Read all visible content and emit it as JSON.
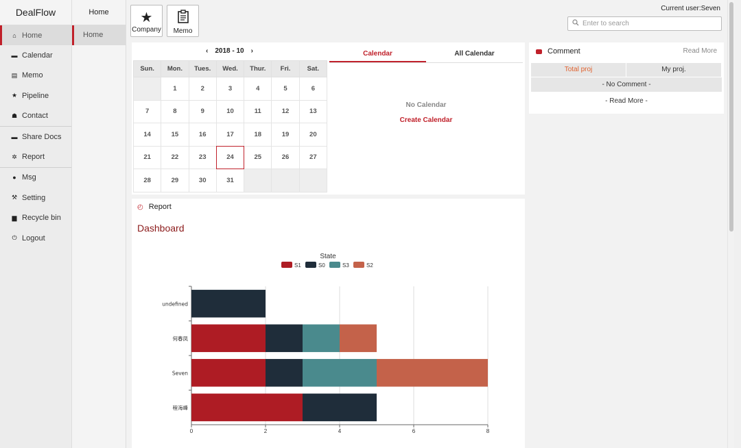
{
  "sidebar": {
    "brand": "DealFlow",
    "items": [
      {
        "label": "Home",
        "icon": "home-icon",
        "glyph": "⌂",
        "active": true
      },
      {
        "label": "Calendar",
        "icon": "calendar-icon",
        "glyph": "▬"
      },
      {
        "label": "Memo",
        "icon": "memo-icon",
        "glyph": "▤"
      },
      {
        "label": "Pipeline",
        "icon": "star-icon",
        "glyph": "★"
      },
      {
        "label": "Contact",
        "icon": "contacts-icon",
        "glyph": "☗"
      },
      {
        "label": "Share Docs",
        "icon": "folder-icon",
        "glyph": "▬"
      },
      {
        "label": "Report",
        "icon": "chart-icon",
        "glyph": "✲"
      },
      {
        "label": "Msg",
        "icon": "chat-icon",
        "glyph": "●"
      },
      {
        "label": "Setting",
        "icon": "wrench-icon",
        "glyph": "⚒"
      },
      {
        "label": "Recycle bin",
        "icon": "trash-icon",
        "glyph": "▆"
      },
      {
        "label": "Logout",
        "icon": "power-icon",
        "glyph": "⏻"
      }
    ]
  },
  "subnav": {
    "title": "Home",
    "item": "Home"
  },
  "toolbar": {
    "company_label": "Company",
    "memo_label": "Memo",
    "current_user": "Current user:Seven",
    "search_placeholder": "Enter to search"
  },
  "calendar": {
    "month_label": "2018 - 10",
    "weekdays": [
      "Sun.",
      "Mon.",
      "Tues.",
      "Wed.",
      "Thur.",
      "Fri.",
      "Sat."
    ],
    "weeks": [
      [
        "",
        "1",
        "2",
        "3",
        "4",
        "5",
        "6"
      ],
      [
        "7",
        "8",
        "9",
        "10",
        "11",
        "12",
        "13"
      ],
      [
        "14",
        "15",
        "16",
        "17",
        "18",
        "19",
        "20"
      ],
      [
        "21",
        "22",
        "23",
        "24",
        "25",
        "26",
        "27"
      ],
      [
        "28",
        "29",
        "30",
        "31",
        "",
        "",
        ""
      ]
    ],
    "today": "24",
    "tabs": [
      "Calendar",
      "All Calendar"
    ],
    "empty_text": "No Calendar",
    "create_label": "Create Calendar"
  },
  "comment": {
    "title": "Comment",
    "read_more": "Read More",
    "tabs": [
      "Total proj",
      "My proj."
    ],
    "empty_text": "- No Comment -",
    "read_more_bottom": "- Read More -"
  },
  "report": {
    "title": "Report",
    "dashboard_title": "Dashboard"
  },
  "chart_data": {
    "type": "bar",
    "orientation": "horizontal",
    "stacked": true,
    "legend_title": "State",
    "legend_placement": "top-center",
    "categories": [
      "undefined",
      "何春凤",
      "Seven",
      "程海峰"
    ],
    "series": [
      {
        "name": "S1",
        "color": "#ae1c24",
        "values": [
          0,
          2,
          2,
          3
        ]
      },
      {
        "name": "S0",
        "color": "#1f2d3a",
        "values": [
          2,
          1,
          1,
          2
        ]
      },
      {
        "name": "S3",
        "color": "#4a8a8d",
        "values": [
          0,
          1,
          2,
          0
        ]
      },
      {
        "name": "S2",
        "color": "#c4624a",
        "values": [
          0,
          1,
          3,
          0
        ]
      }
    ],
    "xlim": [
      0,
      8
    ],
    "xticks": [
      "0",
      "2",
      "4",
      "6",
      "8"
    ],
    "grid": true
  }
}
